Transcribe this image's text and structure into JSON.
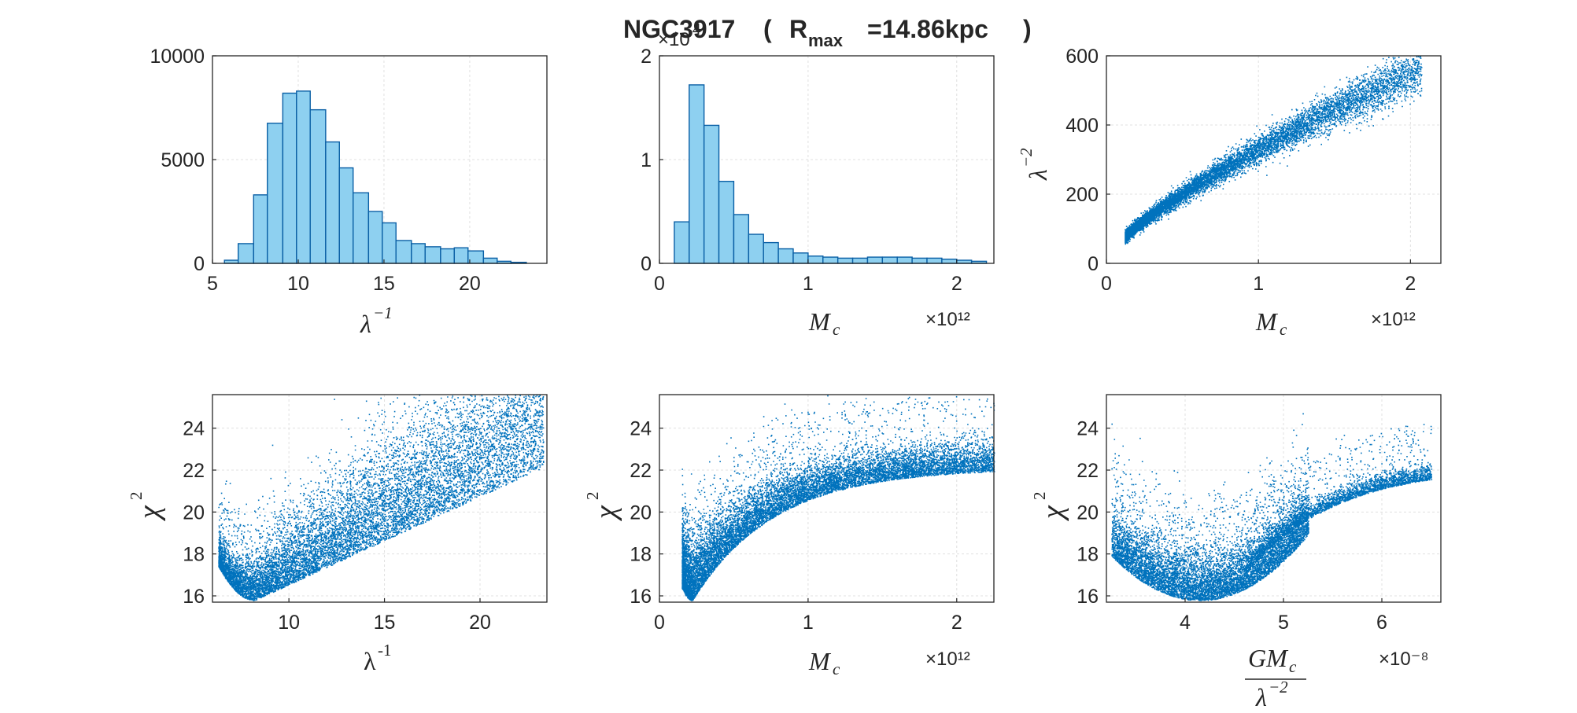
{
  "title": {
    "prefix": "NGC3917",
    "open": "(",
    "r": "R",
    "sub": "max",
    "value": "=14.86kpc",
    "close": ")"
  },
  "colors": {
    "hist_fill": "#8ed0f0",
    "edge": "#0a5fa5",
    "scatter": "#0072bd",
    "grid": "#e0e0e0",
    "axes": "#262626"
  },
  "chart_data": [
    {
      "id": "p1",
      "type": "bar",
      "xlabel_parts": [
        "λ",
        "−1"
      ],
      "xlim": [
        5,
        24.5
      ],
      "ylim": [
        0,
        10000
      ],
      "xticks": [
        5,
        10,
        15,
        20
      ],
      "yticks": [
        0,
        5000,
        10000
      ],
      "bin_edges": [
        5.7,
        6.5,
        7.4,
        8.2,
        9.1,
        9.9,
        10.7,
        11.6,
        12.4,
        13.2,
        14.1,
        14.9,
        15.7,
        16.6,
        17.4,
        18.3,
        19.1,
        19.9,
        20.8,
        21.6,
        22.4,
        23.3
      ],
      "counts": [
        150,
        950,
        3300,
        6750,
        8200,
        8300,
        7400,
        5850,
        4600,
        3400,
        2500,
        1950,
        1100,
        950,
        800,
        700,
        750,
        600,
        250,
        100,
        50
      ]
    },
    {
      "id": "p2",
      "type": "bar",
      "xlabel_parts": [
        "M",
        "c"
      ],
      "multiplier": "×10¹²",
      "y_multiplier_parts": [
        "×10",
        "4"
      ],
      "xlim": [
        0,
        2.25
      ],
      "ylim": [
        0,
        2
      ],
      "xticks": [
        0,
        1,
        2
      ],
      "yticks": [
        0,
        1,
        2
      ],
      "bin_edges": [
        0.1,
        0.2,
        0.3,
        0.4,
        0.5,
        0.6,
        0.7,
        0.8,
        0.9,
        1.0,
        1.1,
        1.2,
        1.3,
        1.4,
        1.5,
        1.6,
        1.7,
        1.8,
        1.9,
        2.0,
        2.1,
        2.2
      ],
      "counts": [
        0.4,
        1.72,
        1.33,
        0.79,
        0.47,
        0.28,
        0.2,
        0.14,
        0.1,
        0.07,
        0.06,
        0.05,
        0.05,
        0.06,
        0.06,
        0.06,
        0.05,
        0.05,
        0.04,
        0.03,
        0.02
      ]
    },
    {
      "id": "p3",
      "type": "scatter",
      "xlabel_parts": [
        "M",
        "c"
      ],
      "ylabel_parts": [
        "λ",
        "−2"
      ],
      "multiplier": "×10¹²",
      "xlim": [
        0,
        2.2
      ],
      "ylim": [
        0,
        600
      ],
      "xticks": [
        0,
        1,
        2
      ],
      "yticks": [
        0,
        200,
        400,
        600
      ]
    },
    {
      "id": "p4",
      "type": "scatter",
      "xlabel_parts": [
        "λ",
        "-1"
      ],
      "ylabel_parts": [
        "χ",
        "2"
      ],
      "xlim": [
        6,
        23.5
      ],
      "ylim": [
        15.7,
        25.6
      ],
      "xticks": [
        10,
        15,
        20
      ],
      "yticks": [
        16,
        18,
        20,
        22,
        24
      ]
    },
    {
      "id": "p5",
      "type": "scatter",
      "xlabel_parts": [
        "M",
        "c"
      ],
      "ylabel_parts": [
        "χ",
        "2"
      ],
      "multiplier": "×10¹²",
      "xlim": [
        0,
        2.25
      ],
      "ylim": [
        15.7,
        25.6
      ],
      "xticks": [
        0,
        1,
        2
      ],
      "yticks": [
        16,
        18,
        20,
        22,
        24
      ]
    },
    {
      "id": "p6",
      "type": "scatter",
      "xlabel_num_parts": [
        "GM",
        "c"
      ],
      "xlabel_den_parts": [
        "λ",
        "−2"
      ],
      "ylabel_parts": [
        "χ",
        "2"
      ],
      "multiplier": "×10⁻⁸",
      "xlim": [
        3.2,
        6.6
      ],
      "ylim": [
        15.7,
        25.6
      ],
      "xticks": [
        4,
        5,
        6
      ],
      "yticks": [
        16,
        18,
        20,
        22,
        24
      ]
    }
  ]
}
